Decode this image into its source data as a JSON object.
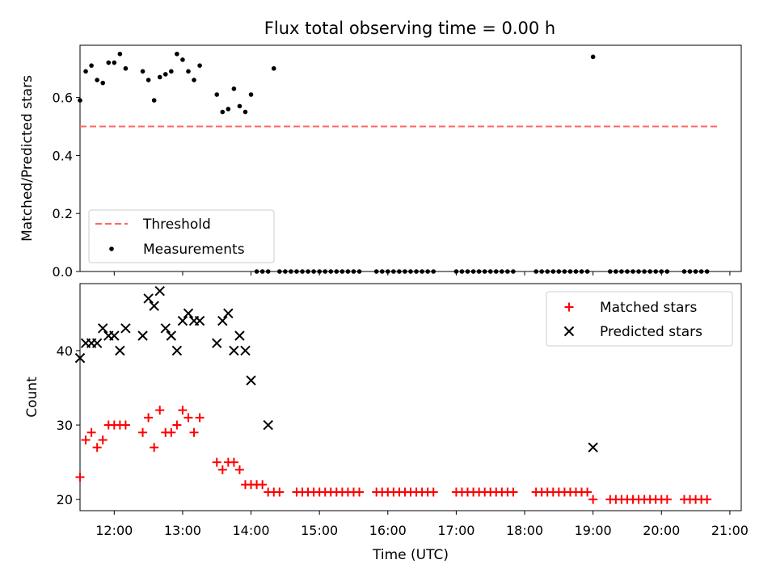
{
  "title": "Flux total observing time = 0.00 h",
  "colors": {
    "threshold": "#ff6666",
    "measurements": "#000000",
    "matched": "#ff0000",
    "predicted": "#000000"
  },
  "chart_data": [
    {
      "type": "scatter",
      "ylabel": "Matched/Predicted stars",
      "xlabel": "",
      "ylim": [
        0,
        0.78
      ],
      "yticks": [
        "0.0",
        "0.2",
        "0.4",
        "0.6"
      ],
      "legend_position": "lower-left",
      "threshold": {
        "name": "Threshold",
        "value": 0.5,
        "x_range": [
          "11:30",
          "20:50"
        ]
      },
      "series": [
        {
          "name": "Measurements",
          "x": [
            "11:30",
            "11:35",
            "11:40",
            "11:45",
            "11:50",
            "11:55",
            "12:00",
            "12:05",
            "12:10",
            "12:25",
            "12:30",
            "12:35",
            "12:40",
            "12:45",
            "12:50",
            "12:55",
            "13:00",
            "13:05",
            "13:10",
            "13:15",
            "13:30",
            "13:35",
            "13:40",
            "13:45",
            "13:50",
            "13:55",
            "14:00",
            "14:05",
            "14:10",
            "14:15",
            "14:20",
            "14:25",
            "14:30",
            "14:35",
            "14:40",
            "14:45",
            "14:50",
            "14:55",
            "15:00",
            "15:05",
            "15:10",
            "15:15",
            "15:20",
            "15:25",
            "15:30",
            "15:35",
            "15:50",
            "15:55",
            "16:00",
            "16:05",
            "16:10",
            "16:15",
            "16:20",
            "16:25",
            "16:30",
            "16:35",
            "16:40",
            "17:00",
            "17:05",
            "17:10",
            "17:15",
            "17:20",
            "17:25",
            "17:30",
            "17:35",
            "17:40",
            "17:45",
            "17:50",
            "18:10",
            "18:15",
            "18:20",
            "18:25",
            "18:30",
            "18:35",
            "18:40",
            "18:45",
            "18:50",
            "18:55",
            "19:00",
            "19:15",
            "19:20",
            "19:25",
            "19:30",
            "19:35",
            "19:40",
            "19:45",
            "19:50",
            "19:55",
            "20:00",
            "20:05",
            "20:20",
            "20:25",
            "20:30",
            "20:35",
            "20:40"
          ],
          "y": [
            0.59,
            0.69,
            0.71,
            0.66,
            0.65,
            0.72,
            0.72,
            0.75,
            0.7,
            0.69,
            0.66,
            0.59,
            0.67,
            0.68,
            0.69,
            0.75,
            0.73,
            0.69,
            0.66,
            0.71,
            0.61,
            0.55,
            0.56,
            0.63,
            0.57,
            0.55,
            0.61,
            0,
            0,
            0,
            0.7,
            0,
            0,
            0,
            0,
            0,
            0,
            0,
            0,
            0,
            0,
            0,
            0,
            0,
            0,
            0,
            0,
            0,
            0,
            0,
            0,
            0,
            0,
            0,
            0,
            0,
            0,
            0,
            0,
            0,
            0,
            0,
            0,
            0,
            0,
            0,
            0,
            0,
            0,
            0,
            0,
            0,
            0,
            0,
            0,
            0,
            0,
            0,
            0.74,
            0,
            0,
            0,
            0,
            0,
            0,
            0,
            0,
            0,
            0,
            0,
            0,
            0,
            0,
            0,
            0
          ]
        }
      ]
    },
    {
      "type": "scatter",
      "ylabel": "Count",
      "xlabel": "Time (UTC)",
      "ylim": [
        18.5,
        49
      ],
      "yticks": [
        "20",
        "30",
        "40"
      ],
      "xticks": [
        "12:00",
        "13:00",
        "14:00",
        "15:00",
        "16:00",
        "17:00",
        "18:00",
        "19:00",
        "20:00",
        "21:00"
      ],
      "legend_position": "upper-right",
      "series": [
        {
          "name": "Matched stars",
          "x": [
            "11:30",
            "11:35",
            "11:40",
            "11:45",
            "11:50",
            "11:55",
            "12:00",
            "12:05",
            "12:10",
            "12:25",
            "12:30",
            "12:35",
            "12:40",
            "12:45",
            "12:50",
            "12:55",
            "13:00",
            "13:05",
            "13:10",
            "13:15",
            "13:30",
            "13:35",
            "13:40",
            "13:45",
            "13:50",
            "13:55",
            "14:00",
            "14:05",
            "14:10",
            "14:15",
            "14:20",
            "14:25",
            "14:40",
            "14:45",
            "14:50",
            "14:55",
            "15:00",
            "15:05",
            "15:10",
            "15:15",
            "15:20",
            "15:25",
            "15:30",
            "15:35",
            "15:50",
            "15:55",
            "16:00",
            "16:05",
            "16:10",
            "16:15",
            "16:20",
            "16:25",
            "16:30",
            "16:35",
            "16:40",
            "17:00",
            "17:05",
            "17:10",
            "17:15",
            "17:20",
            "17:25",
            "17:30",
            "17:35",
            "17:40",
            "17:45",
            "17:50",
            "18:10",
            "18:15",
            "18:20",
            "18:25",
            "18:30",
            "18:35",
            "18:40",
            "18:45",
            "18:50",
            "18:55",
            "19:00",
            "19:15",
            "19:20",
            "19:25",
            "19:30",
            "19:35",
            "19:40",
            "19:45",
            "19:50",
            "19:55",
            "20:00",
            "20:05",
            "20:20",
            "20:25",
            "20:30",
            "20:35",
            "20:40"
          ],
          "y": [
            23,
            28,
            29,
            27,
            28,
            30,
            30,
            30,
            30,
            29,
            31,
            27,
            32,
            29,
            29,
            30,
            32,
            31,
            29,
            31,
            25,
            24,
            25,
            25,
            24,
            22,
            22,
            22,
            22,
            21,
            21,
            21,
            21,
            21,
            21,
            21,
            21,
            21,
            21,
            21,
            21,
            21,
            21,
            21,
            21,
            21,
            21,
            21,
            21,
            21,
            21,
            21,
            21,
            21,
            21,
            21,
            21,
            21,
            21,
            21,
            21,
            21,
            21,
            21,
            21,
            21,
            21,
            21,
            21,
            21,
            21,
            21,
            21,
            21,
            21,
            21,
            20,
            20,
            20,
            20,
            20,
            20,
            20,
            20,
            20,
            20,
            20,
            20,
            20,
            20,
            20,
            20,
            20
          ]
        },
        {
          "name": "Predicted stars",
          "x": [
            "11:30",
            "11:35",
            "11:40",
            "11:45",
            "11:50",
            "11:55",
            "12:00",
            "12:05",
            "12:10",
            "12:25",
            "12:30",
            "12:35",
            "12:40",
            "12:45",
            "12:50",
            "12:55",
            "13:00",
            "13:05",
            "13:10",
            "13:15",
            "13:30",
            "13:35",
            "13:40",
            "13:45",
            "13:50",
            "13:55",
            "14:00",
            "14:15",
            "19:00"
          ],
          "y": [
            39,
            41,
            41,
            41,
            43,
            42,
            42,
            40,
            43,
            42,
            47,
            46,
            48,
            43,
            42,
            40,
            44,
            45,
            44,
            44,
            41,
            44,
            45,
            40,
            42,
            40,
            36,
            30,
            27
          ]
        }
      ]
    }
  ]
}
